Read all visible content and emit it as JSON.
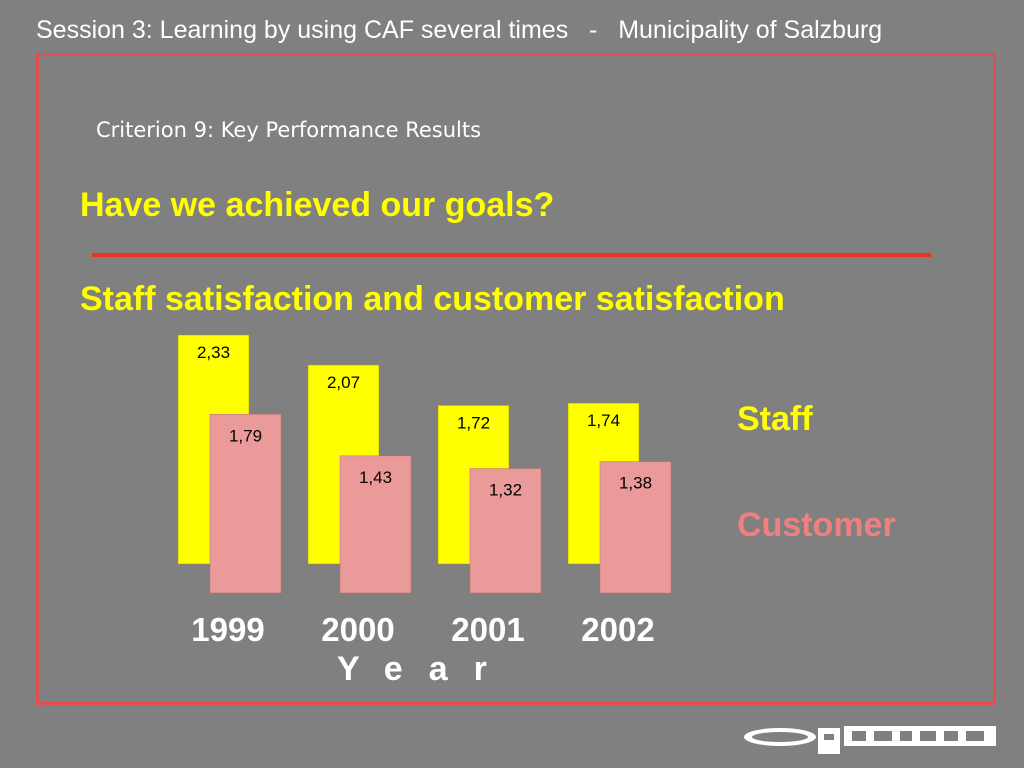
{
  "header": {
    "title": "Session 3: Learning by using CAF several times   -   Municipality of Salzburg"
  },
  "content": {
    "criterion": "Criterion 9: Key Performance Results",
    "question": "Have we achieved our goals?",
    "subtitle": "Staff satisfaction and customer satisfaction"
  },
  "colors": {
    "staff": "#ffff00",
    "customer": "#eb9a9a",
    "customer_text": "#f08080",
    "title_text": "#ffff00",
    "frame": "#e05050",
    "rule": "#e8341c"
  },
  "chart_data": {
    "type": "bar",
    "categories": [
      "1999",
      "2000",
      "2001",
      "2002"
    ],
    "series": [
      {
        "name": "Staff",
        "values": [
          2.33,
          2.07,
          1.72,
          1.74
        ],
        "labels": [
          "2,33",
          "2,07",
          "1,72",
          "1,74"
        ]
      },
      {
        "name": "Customer",
        "values": [
          1.79,
          1.43,
          1.32,
          1.38
        ],
        "labels": [
          "1,79",
          "1,43",
          "1,32",
          "1,38"
        ]
      }
    ],
    "xlabel": "Year",
    "ylabel": "",
    "legend": "right",
    "grid": false
  },
  "logo": {
    "icon": "organization-logo"
  }
}
